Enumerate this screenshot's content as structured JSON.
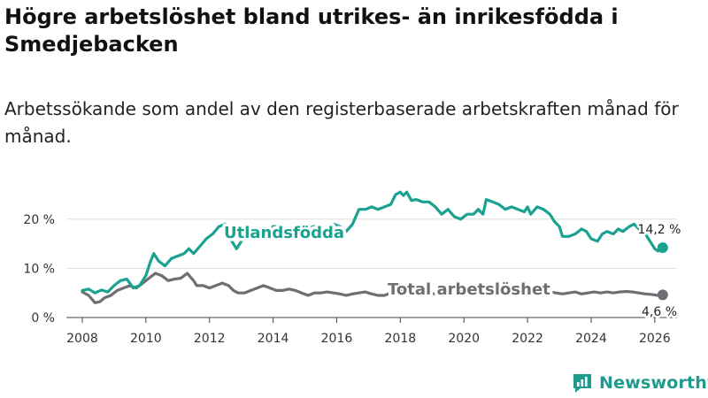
{
  "title": "Högre arbetslöshet bland utrikes- än inrikesfödda i Smedjebacken",
  "subtitle": "Arbetssökande som andel av den registerbaserade arbetskraften månad för månad.",
  "brand": "Newsworthy",
  "colors": {
    "foreign": "#1aa291",
    "total": "#6e6e73",
    "grid": "#dddddd",
    "text": "#333333"
  },
  "chart_data": {
    "type": "line",
    "title": "Högre arbetslöshet bland utrikes- än inrikesfödda i Smedjebacken",
    "xlabel": "",
    "ylabel": "",
    "xlim": [
      2007.5,
      2026.7
    ],
    "ylim": [
      0,
      25
    ],
    "x_ticks": [
      {
        "value": 2008,
        "label": "2008"
      },
      {
        "value": 2010,
        "label": "2010"
      },
      {
        "value": 2012,
        "label": "2012"
      },
      {
        "value": 2014,
        "label": "2014"
      },
      {
        "value": 2016,
        "label": "2016"
      },
      {
        "value": 2018,
        "label": "2018"
      },
      {
        "value": 2020,
        "label": "2020"
      },
      {
        "value": 2022,
        "label": "2022"
      },
      {
        "value": 2024,
        "label": "2024"
      },
      {
        "value": 2026,
        "label": "2026"
      }
    ],
    "y_ticks": [
      {
        "value": 0,
        "label": "0 %"
      },
      {
        "value": 10,
        "label": "10 %"
      },
      {
        "value": 20,
        "label": "20 %"
      }
    ],
    "series": [
      {
        "name": "Utlandsfödda",
        "label": "Utlandsfödda",
        "color": "#1aa291",
        "end_label": "14,2 %",
        "points": [
          [
            2008.0,
            5.5
          ],
          [
            2008.2,
            5.8
          ],
          [
            2008.4,
            5.0
          ],
          [
            2008.6,
            5.6
          ],
          [
            2008.8,
            5.2
          ],
          [
            2009.0,
            6.5
          ],
          [
            2009.2,
            7.5
          ],
          [
            2009.4,
            7.8
          ],
          [
            2009.6,
            6.0
          ],
          [
            2009.8,
            6.5
          ],
          [
            2010.0,
            8.5
          ],
          [
            2010.15,
            11.5
          ],
          [
            2010.25,
            13.0
          ],
          [
            2010.4,
            11.5
          ],
          [
            2010.6,
            10.5
          ],
          [
            2010.8,
            12.0
          ],
          [
            2011.0,
            12.5
          ],
          [
            2011.2,
            13.0
          ],
          [
            2011.35,
            14.0
          ],
          [
            2011.5,
            13.0
          ],
          [
            2011.7,
            14.5
          ],
          [
            2011.9,
            16.0
          ],
          [
            2012.1,
            17.0
          ],
          [
            2012.3,
            18.5
          ],
          [
            2012.5,
            19.0
          ],
          [
            2012.7,
            15.5
          ],
          [
            2012.85,
            14.0
          ],
          [
            2013.0,
            15.5
          ],
          [
            2013.2,
            17.5
          ],
          [
            2013.5,
            18.0
          ],
          [
            2013.8,
            17.0
          ],
          [
            2014.0,
            18.5
          ],
          [
            2014.3,
            18.5
          ],
          [
            2014.5,
            17.0
          ],
          [
            2014.7,
            17.5
          ],
          [
            2015.0,
            18.0
          ],
          [
            2015.3,
            18.5
          ],
          [
            2015.6,
            18.0
          ],
          [
            2015.9,
            19.0
          ],
          [
            2016.1,
            18.5
          ],
          [
            2016.3,
            17.5
          ],
          [
            2016.5,
            19.0
          ],
          [
            2016.7,
            22.0
          ],
          [
            2016.9,
            22.0
          ],
          [
            2017.1,
            22.5
          ],
          [
            2017.3,
            22.0
          ],
          [
            2017.5,
            22.5
          ],
          [
            2017.7,
            23.0
          ],
          [
            2017.85,
            25.0
          ],
          [
            2018.0,
            25.5
          ],
          [
            2018.1,
            24.8
          ],
          [
            2018.2,
            25.5
          ],
          [
            2018.35,
            23.8
          ],
          [
            2018.5,
            24.0
          ],
          [
            2018.7,
            23.5
          ],
          [
            2018.9,
            23.5
          ],
          [
            2019.1,
            22.5
          ],
          [
            2019.3,
            21.0
          ],
          [
            2019.5,
            22.0
          ],
          [
            2019.7,
            20.5
          ],
          [
            2019.9,
            20.0
          ],
          [
            2020.1,
            21.0
          ],
          [
            2020.3,
            21.0
          ],
          [
            2020.45,
            22.0
          ],
          [
            2020.6,
            21.0
          ],
          [
            2020.7,
            24.0
          ],
          [
            2020.9,
            23.5
          ],
          [
            2021.1,
            23.0
          ],
          [
            2021.3,
            22.0
          ],
          [
            2021.5,
            22.5
          ],
          [
            2021.7,
            22.0
          ],
          [
            2021.9,
            21.5
          ],
          [
            2022.0,
            22.5
          ],
          [
            2022.1,
            21.0
          ],
          [
            2022.3,
            22.5
          ],
          [
            2022.5,
            22.0
          ],
          [
            2022.7,
            21.0
          ],
          [
            2022.85,
            19.5
          ],
          [
            2023.0,
            18.5
          ],
          [
            2023.1,
            16.5
          ],
          [
            2023.3,
            16.5
          ],
          [
            2023.5,
            17.0
          ],
          [
            2023.7,
            18.0
          ],
          [
            2023.85,
            17.5
          ],
          [
            2024.0,
            16.0
          ],
          [
            2024.2,
            15.5
          ],
          [
            2024.35,
            17.0
          ],
          [
            2024.5,
            17.5
          ],
          [
            2024.7,
            17.0
          ],
          [
            2024.85,
            18.0
          ],
          [
            2025.0,
            17.5
          ],
          [
            2025.2,
            18.5
          ],
          [
            2025.35,
            19.0
          ],
          [
            2025.5,
            18.0
          ],
          [
            2025.7,
            17.0
          ],
          [
            2025.85,
            15.5
          ],
          [
            2026.0,
            14.0
          ],
          [
            2026.1,
            13.5
          ],
          [
            2026.25,
            14.2
          ]
        ]
      },
      {
        "name": "Total arbetslöshet",
        "label": "Total arbetslöshet",
        "color": "#6e6e73",
        "end_label": "4,6 %",
        "points": [
          [
            2008.0,
            5.2
          ],
          [
            2008.2,
            4.5
          ],
          [
            2008.4,
            3.0
          ],
          [
            2008.55,
            3.2
          ],
          [
            2008.7,
            4.0
          ],
          [
            2008.9,
            4.5
          ],
          [
            2009.1,
            5.5
          ],
          [
            2009.3,
            6.0
          ],
          [
            2009.5,
            6.5
          ],
          [
            2009.7,
            6.0
          ],
          [
            2009.9,
            7.0
          ],
          [
            2010.1,
            8.0
          ],
          [
            2010.3,
            9.0
          ],
          [
            2010.5,
            8.5
          ],
          [
            2010.7,
            7.5
          ],
          [
            2010.9,
            7.8
          ],
          [
            2011.1,
            8.0
          ],
          [
            2011.3,
            9.0
          ],
          [
            2011.5,
            7.5
          ],
          [
            2011.6,
            6.5
          ],
          [
            2011.8,
            6.5
          ],
          [
            2012.0,
            6.0
          ],
          [
            2012.2,
            6.5
          ],
          [
            2012.4,
            7.0
          ],
          [
            2012.6,
            6.5
          ],
          [
            2012.75,
            5.5
          ],
          [
            2012.9,
            5.0
          ],
          [
            2013.1,
            5.0
          ],
          [
            2013.3,
            5.5
          ],
          [
            2013.5,
            6.0
          ],
          [
            2013.7,
            6.5
          ],
          [
            2013.9,
            6.0
          ],
          [
            2014.1,
            5.5
          ],
          [
            2014.3,
            5.5
          ],
          [
            2014.5,
            5.8
          ],
          [
            2014.7,
            5.5
          ],
          [
            2014.9,
            5.0
          ],
          [
            2015.1,
            4.5
          ],
          [
            2015.3,
            5.0
          ],
          [
            2015.5,
            5.0
          ],
          [
            2015.7,
            5.2
          ],
          [
            2015.9,
            5.0
          ],
          [
            2016.1,
            4.8
          ],
          [
            2016.3,
            4.5
          ],
          [
            2016.5,
            4.8
          ],
          [
            2016.7,
            5.0
          ],
          [
            2016.9,
            5.2
          ],
          [
            2017.1,
            4.8
          ],
          [
            2017.3,
            4.5
          ],
          [
            2017.5,
            4.5
          ],
          [
            2017.7,
            5.0
          ],
          [
            2017.9,
            5.2
          ],
          [
            2018.1,
            5.5
          ],
          [
            2018.3,
            5.3
          ],
          [
            2018.5,
            5.0
          ],
          [
            2018.7,
            5.0
          ],
          [
            2018.9,
            5.0
          ],
          [
            2019.1,
            4.8
          ],
          [
            2019.3,
            5.0
          ],
          [
            2019.5,
            5.2
          ],
          [
            2019.7,
            5.0
          ],
          [
            2019.9,
            5.2
          ],
          [
            2020.1,
            5.5
          ],
          [
            2020.3,
            5.8
          ],
          [
            2020.5,
            5.5
          ],
          [
            2020.7,
            5.8
          ],
          [
            2020.9,
            5.5
          ],
          [
            2021.1,
            5.3
          ],
          [
            2021.3,
            5.0
          ],
          [
            2021.5,
            5.2
          ],
          [
            2021.7,
            5.0
          ],
          [
            2021.9,
            5.2
          ],
          [
            2022.1,
            5.0
          ],
          [
            2022.3,
            5.2
          ],
          [
            2022.5,
            5.0
          ],
          [
            2022.7,
            5.2
          ],
          [
            2022.9,
            5.0
          ],
          [
            2023.1,
            4.8
          ],
          [
            2023.3,
            5.0
          ],
          [
            2023.5,
            5.2
          ],
          [
            2023.7,
            4.8
          ],
          [
            2023.9,
            5.0
          ],
          [
            2024.1,
            5.2
          ],
          [
            2024.3,
            5.0
          ],
          [
            2024.5,
            5.2
          ],
          [
            2024.7,
            5.0
          ],
          [
            2024.9,
            5.2
          ],
          [
            2025.1,
            5.3
          ],
          [
            2025.3,
            5.2
          ],
          [
            2025.5,
            5.0
          ],
          [
            2025.7,
            4.8
          ],
          [
            2025.9,
            4.7
          ],
          [
            2026.1,
            4.5
          ],
          [
            2026.25,
            4.6
          ]
        ]
      }
    ]
  }
}
